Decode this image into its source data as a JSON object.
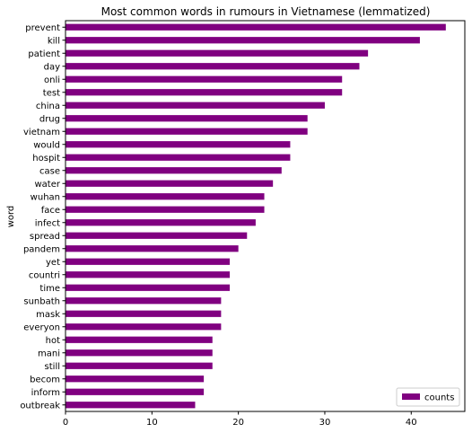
{
  "chart_data": {
    "type": "bar",
    "orientation": "horizontal",
    "title": "Most common words in rumours in Vietnamese (lemmatized)",
    "ylabel": "word",
    "xlabel": "",
    "categories": [
      "prevent",
      "kill",
      "patient",
      "day",
      "onli",
      "test",
      "china",
      "drug",
      "vietnam",
      "would",
      "hospit",
      "case",
      "water",
      "wuhan",
      "face",
      "infect",
      "spread",
      "pandem",
      "yet",
      "countri",
      "time",
      "sunbath",
      "mask",
      "everyon",
      "hot",
      "mani",
      "still",
      "becom",
      "inform",
      "outbreak"
    ],
    "series": [
      {
        "name": "counts",
        "color": "#800080",
        "values": [
          44,
          41,
          35,
          34,
          32,
          32,
          30,
          28,
          28,
          26,
          26,
          25,
          24,
          23,
          23,
          22,
          21,
          20,
          19,
          19,
          19,
          18,
          18,
          18,
          17,
          17,
          17,
          16,
          16,
          15
        ]
      }
    ],
    "xlim": [
      0,
      46.2
    ],
    "xticks": [
      0,
      10,
      20,
      30,
      40
    ],
    "grid": false,
    "legend_position": "lower-right"
  }
}
